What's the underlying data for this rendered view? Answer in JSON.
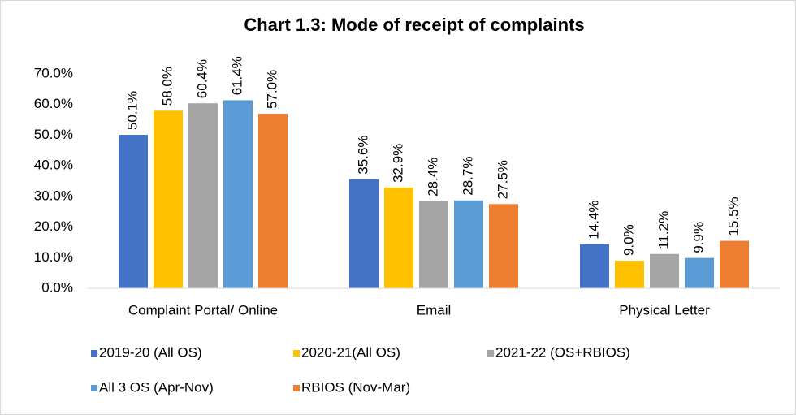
{
  "chart_data": {
    "type": "bar",
    "title": "Chart 1.3: Mode of receipt of complaints",
    "categories": [
      "Complaint Portal/ Online",
      "Email",
      "Physical Letter"
    ],
    "series": [
      {
        "name": "2019-20 (All OS)",
        "color": "#4472c4",
        "values": [
          50.1,
          35.6,
          14.4
        ],
        "value_labels": [
          "50.1%",
          "35.6%",
          "14.4%"
        ]
      },
      {
        "name": "2020-21(All OS)",
        "color": "#ffc000",
        "values": [
          58.0,
          32.9,
          9.0
        ],
        "value_labels": [
          "58.0%",
          "32.9%",
          "9.0%"
        ]
      },
      {
        "name": "2021-22 (OS+RBIOS)",
        "color": "#a5a5a5",
        "values": [
          60.4,
          28.4,
          11.2
        ],
        "value_labels": [
          "60.4%",
          "28.4%",
          "11.2%"
        ]
      },
      {
        "name": "All 3 OS (Apr-Nov)",
        "color": "#5b9bd5",
        "values": [
          61.4,
          28.7,
          9.9
        ],
        "value_labels": [
          "61.4%",
          "28.7%",
          "9.9%"
        ]
      },
      {
        "name": "RBIOS (Nov-Mar)",
        "color": "#ed7d31",
        "values": [
          57.0,
          27.5,
          15.5
        ],
        "value_labels": [
          "57.0%",
          "27.5%",
          "15.5%"
        ]
      }
    ],
    "ylim": [
      0,
      70
    ],
    "yticks": [
      {
        "value": 0,
        "label": "0.0%"
      },
      {
        "value": 10,
        "label": "10.0%"
      },
      {
        "value": 20,
        "label": "20.0%"
      },
      {
        "value": 30,
        "label": "30.0%"
      },
      {
        "value": 40,
        "label": "40.0%"
      },
      {
        "value": 50,
        "label": "50.0%"
      },
      {
        "value": 60,
        "label": "60.0%"
      },
      {
        "value": 70,
        "label": "70.0%"
      }
    ],
    "grid": false
  }
}
